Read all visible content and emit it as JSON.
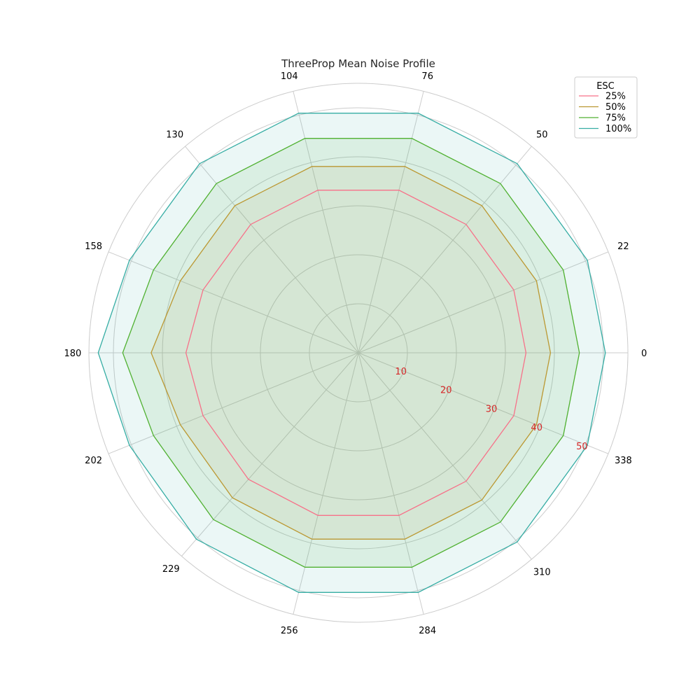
{
  "chart_data": {
    "type": "radar",
    "title": "ThreeProp Mean Noise Profile",
    "angles_deg": [
      0,
      22,
      50,
      76,
      104,
      130,
      158,
      180,
      202,
      229,
      256,
      284,
      310,
      338
    ],
    "angle_tick_labels": [
      "0",
      "22",
      "50",
      "76",
      "104",
      "130",
      "158",
      "180",
      "202",
      "229",
      "256",
      "284",
      "310",
      "338"
    ],
    "radial_ticks": [
      10,
      20,
      30,
      40,
      50
    ],
    "radial_tick_color": "#d62728",
    "rlim": [
      0,
      55
    ],
    "grid": true,
    "legend": {
      "title": "ESC",
      "placement": "top-right"
    },
    "series": [
      {
        "name": "25%",
        "color": "#f77189",
        "fill": false,
        "values": [
          34.2,
          34.2,
          34.2,
          34.2,
          34.2,
          34.2,
          34.2,
          35.2,
          34.2,
          34.2,
          34.2,
          34.2,
          34.2,
          34.2
        ]
      },
      {
        "name": "50%",
        "color": "#bb9832",
        "fill": false,
        "values": [
          39.2,
          39.2,
          39.2,
          39.2,
          39.2,
          39.2,
          39.2,
          42.3,
          39.2,
          39.2,
          39.2,
          39.2,
          39.2,
          39.2
        ]
      },
      {
        "name": "75%",
        "color": "#50b131",
        "fill": true,
        "values": [
          45.1,
          45.1,
          45.1,
          45.1,
          45.1,
          45.1,
          45.1,
          48.1,
          45.1,
          45.1,
          45.1,
          45.1,
          45.1,
          45.1
        ]
      },
      {
        "name": "100%",
        "color": "#36ada4",
        "fill": true,
        "values": [
          50.4,
          50.4,
          50.4,
          50.4,
          50.4,
          50.4,
          50.4,
          53.1,
          50.4,
          50.4,
          50.4,
          50.4,
          50.4,
          50.4
        ]
      }
    ]
  }
}
